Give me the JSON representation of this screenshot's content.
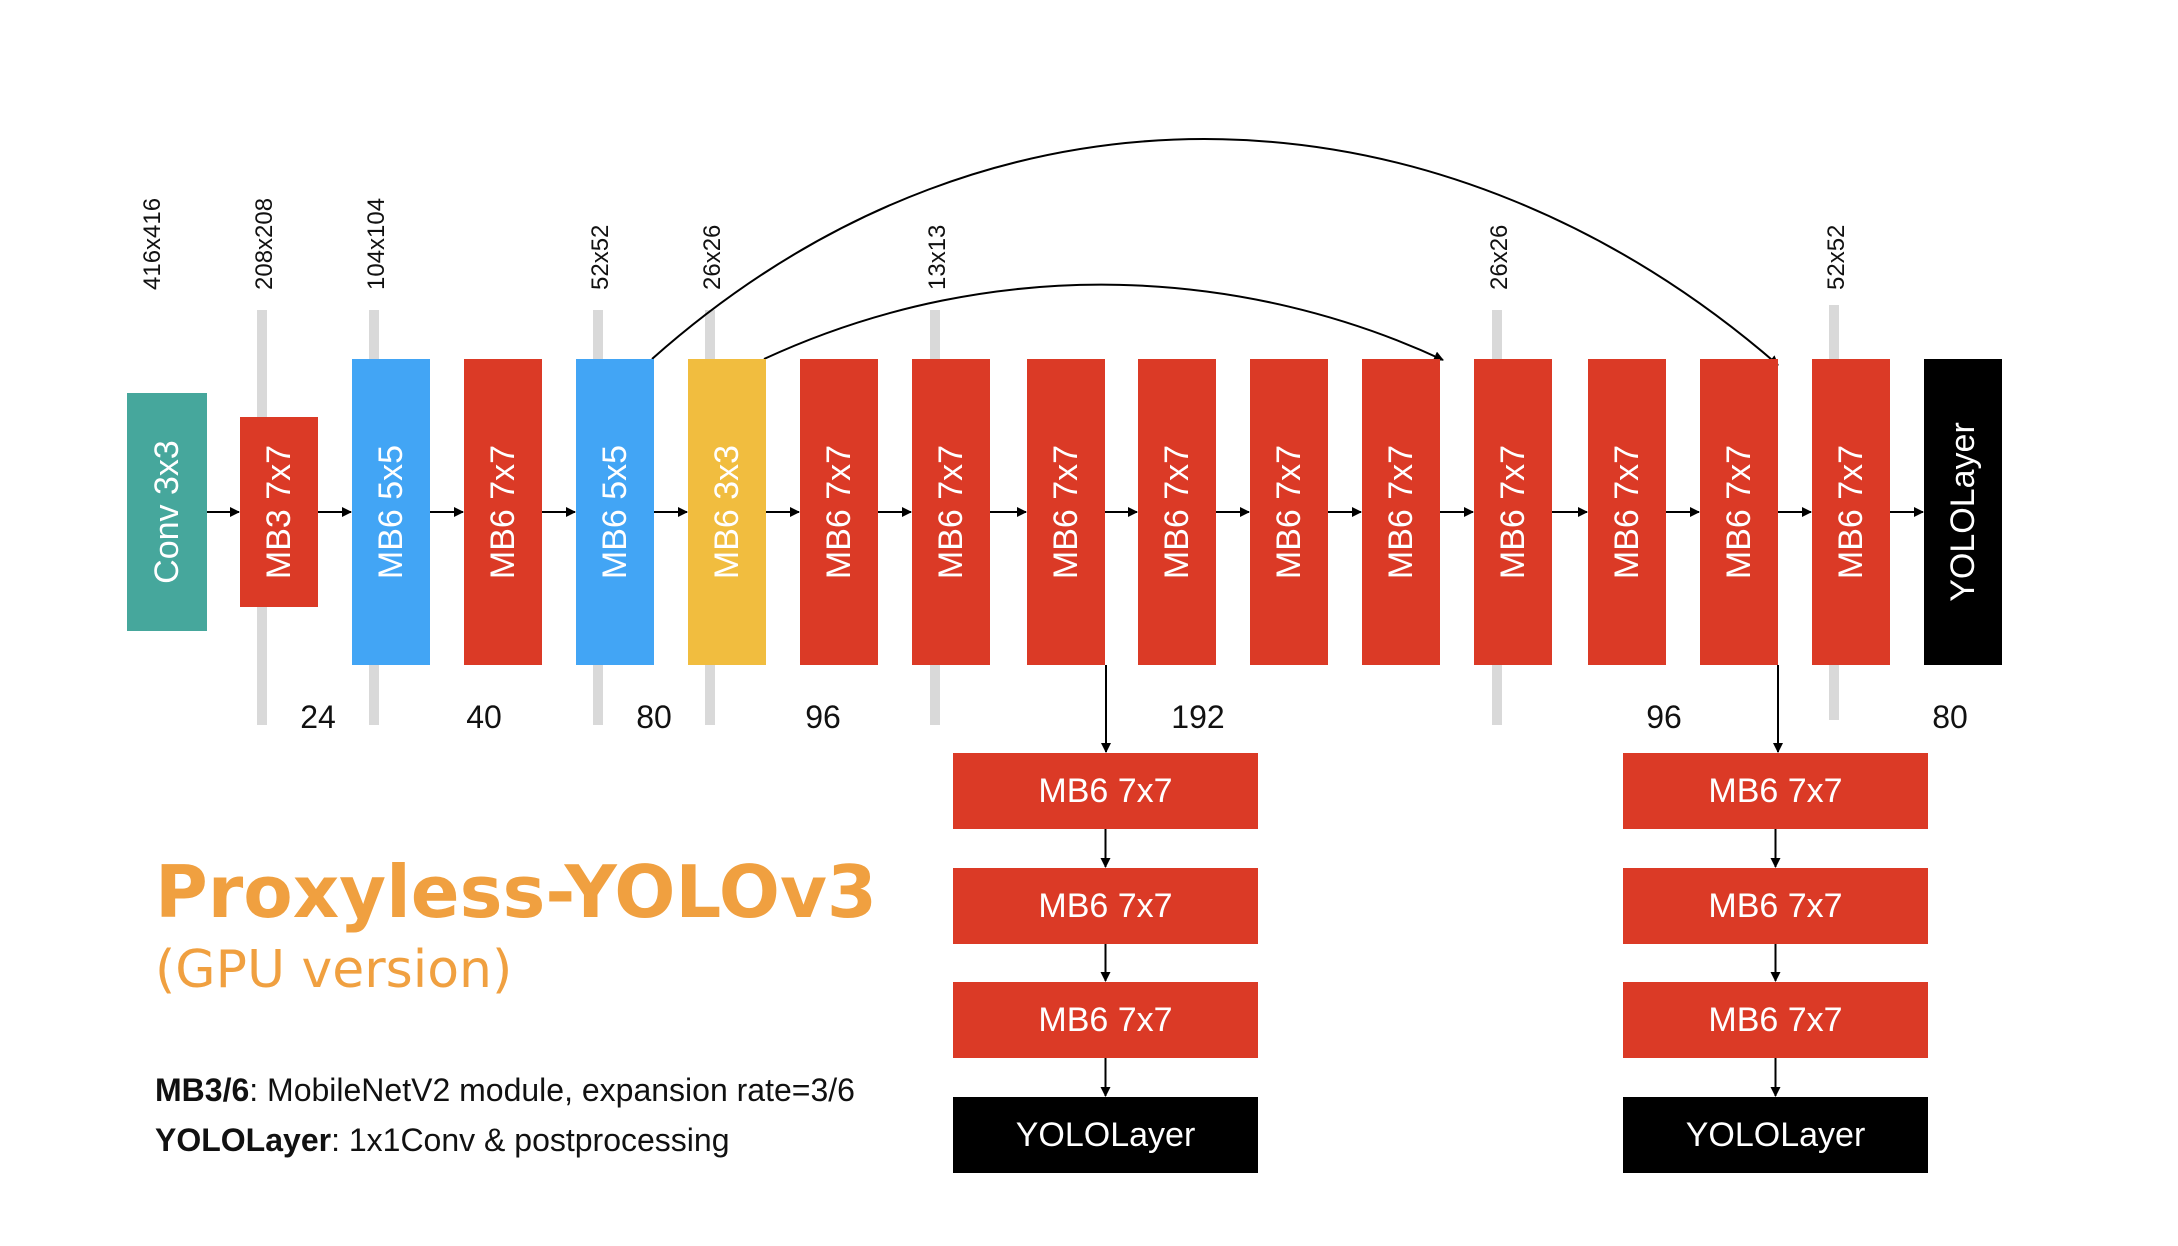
{
  "colors": {
    "red": "#db3a26",
    "blue": "#42a5f5",
    "yellow": "#f1bd3f",
    "teal": "#46a79c",
    "black": "#000000",
    "separator": "#d9d9d9",
    "title": "#f0a040"
  },
  "title": "Proxyless-YOLOv3",
  "subtitle": "(GPU version)",
  "legend": [
    {
      "term": "MB3/6",
      "desc": ": MobileNetV2 module, expansion rate=3/6"
    },
    {
      "term": "YOLOLayer",
      "desc": ": 1x1Conv & postprocessing"
    }
  ],
  "resolutions": [
    "416x416",
    "208x208",
    "104x104",
    "52x52",
    "26x26",
    "13x13",
    "26x26",
    "52x52"
  ],
  "channels": [
    "24",
    "40",
    "80",
    "96",
    "192",
    "96",
    "80"
  ],
  "main_blocks": [
    {
      "label": "Conv 3x3",
      "color": "teal"
    },
    {
      "label": "MB3 7x7",
      "color": "red"
    },
    {
      "label": "MB6 5x5",
      "color": "blue"
    },
    {
      "label": "MB6 7x7",
      "color": "red"
    },
    {
      "label": "MB6 5x5",
      "color": "blue"
    },
    {
      "label": "MB6 3x3",
      "color": "yellow"
    },
    {
      "label": "MB6 7x7",
      "color": "red"
    },
    {
      "label": "MB6 7x7",
      "color": "red"
    },
    {
      "label": "MB6 7x7",
      "color": "red"
    },
    {
      "label": "MB6 7x7",
      "color": "red"
    },
    {
      "label": "MB6 7x7",
      "color": "red"
    },
    {
      "label": "MB6 7x7",
      "color": "red"
    },
    {
      "label": "MB6 7x7",
      "color": "red"
    },
    {
      "label": "MB6 7x7",
      "color": "red"
    },
    {
      "label": "MB6 7x7",
      "color": "red"
    },
    {
      "label": "MB6 7x7",
      "color": "red"
    },
    {
      "label": "YOLOLayer",
      "color": "black"
    }
  ],
  "branch_left": [
    {
      "label": "MB6 7x7",
      "color": "red"
    },
    {
      "label": "MB6 7x7",
      "color": "red"
    },
    {
      "label": "MB6 7x7",
      "color": "red"
    },
    {
      "label": "YOLOLayer",
      "color": "black"
    }
  ],
  "branch_right": [
    {
      "label": "MB6 7x7",
      "color": "red"
    },
    {
      "label": "MB6 7x7",
      "color": "red"
    },
    {
      "label": "MB6 7x7",
      "color": "red"
    },
    {
      "label": "YOLOLayer",
      "color": "black"
    }
  ]
}
